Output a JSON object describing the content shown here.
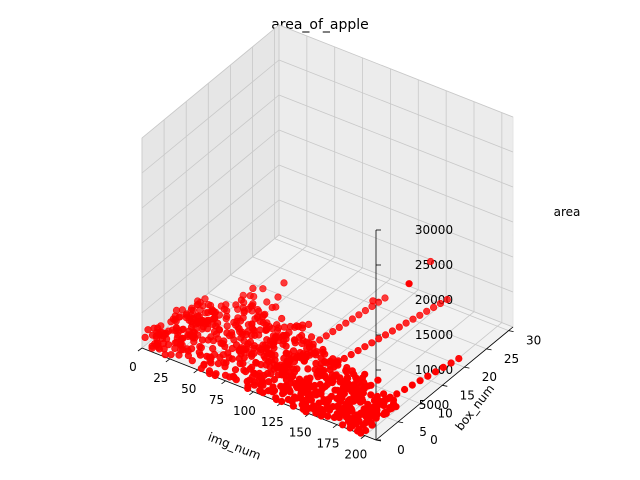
{
  "chart_data": {
    "type": "scatter",
    "projection": "3d",
    "title": "area_of_apple",
    "xlabel": "img_num",
    "ylabel": "box_num",
    "zlabel": "area",
    "xlim": [
      0,
      210
    ],
    "ylim": [
      0,
      31
    ],
    "zlim": [
      0,
      30000
    ],
    "xticks": [
      "0",
      "25",
      "50",
      "75",
      "100",
      "125",
      "150",
      "175",
      "200"
    ],
    "yticks": [
      "0",
      "5",
      "10",
      "15",
      "20",
      "25",
      "30"
    ],
    "zticks": [
      "0",
      "5000",
      "10000",
      "15000",
      "20000",
      "25000",
      "30000"
    ],
    "grid": true,
    "marker_color": "#ff0000",
    "clusters": [
      {
        "x": [
          0,
          25
        ],
        "y": [
          0,
          13
        ],
        "z": [
          0,
          2000
        ],
        "count": 120
      },
      {
        "x": [
          25,
          60
        ],
        "y": [
          0,
          17
        ],
        "z": [
          0,
          2500
        ],
        "count": 110
      },
      {
        "x": [
          60,
          100
        ],
        "y": [
          0,
          14
        ],
        "z": [
          0,
          2200
        ],
        "count": 130
      },
      {
        "x": [
          100,
          135
        ],
        "y": [
          0,
          12
        ],
        "z": [
          0,
          2000
        ],
        "count": 110
      },
      {
        "x": [
          135,
          170
        ],
        "y": [
          0,
          10
        ],
        "z": [
          0,
          1800
        ],
        "count": 120
      },
      {
        "x": [
          170,
          200
        ],
        "y": [
          0,
          8
        ],
        "z": [
          0,
          1500
        ],
        "count": 90
      }
    ],
    "lines": [
      {
        "x": [
          50,
          90
        ],
        "y": [
          10,
          15
        ],
        "z": [
          200,
          1200
        ],
        "count": 12
      },
      {
        "x": [
          95,
          115
        ],
        "y": [
          0,
          26
        ],
        "z": [
          500,
          800
        ],
        "count": 22
      },
      {
        "x": [
          120,
          155
        ],
        "y": [
          0,
          30
        ],
        "z": [
          400,
          1000
        ],
        "count": 26
      },
      {
        "x": [
          180,
          205
        ],
        "y": [
          0,
          20
        ],
        "z": [
          300,
          900
        ],
        "count": 16
      }
    ],
    "outliers": [
      {
        "x": 200,
        "y": 10,
        "z": 16500
      },
      {
        "x": 140,
        "y": 30,
        "z": 5500
      },
      {
        "x": 60,
        "y": 17,
        "z": 4200
      },
      {
        "x": 40,
        "y": 15,
        "z": 3200
      },
      {
        "x": 20,
        "y": 5,
        "z": 3500
      },
      {
        "x": 180,
        "y": 8,
        "z": 2500
      },
      {
        "x": 120,
        "y": 22,
        "z": 2800
      }
    ]
  }
}
